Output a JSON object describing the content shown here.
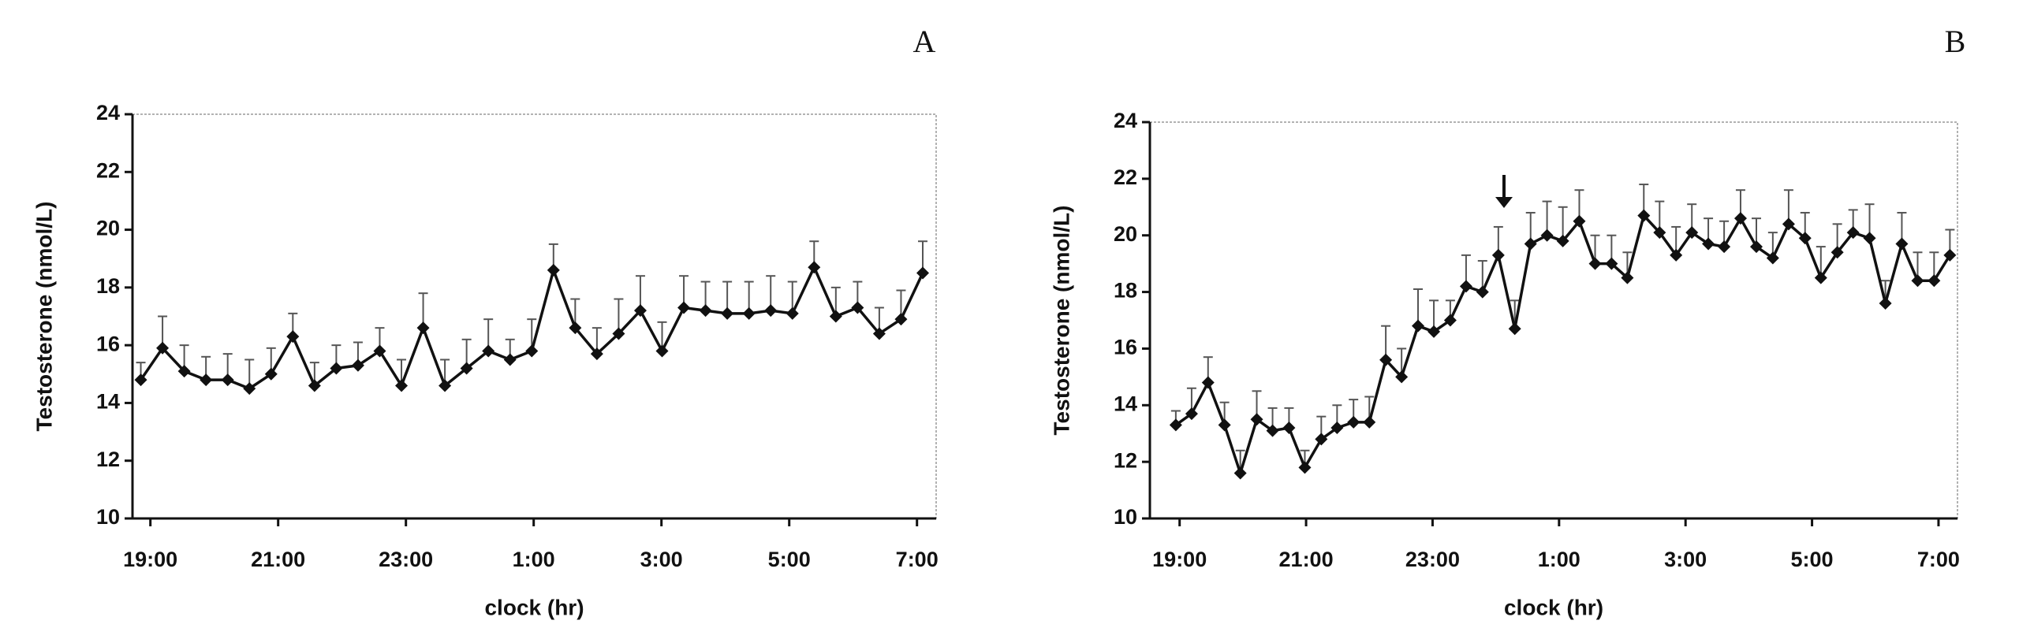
{
  "chart_data": [
    {
      "type": "line",
      "title": "A",
      "xlabel": "clock (hr)",
      "ylabel": "Testosterone (nmol/L)",
      "color": "#111111",
      "x": [
        -0.15,
        0.19,
        0.53,
        0.87,
        1.21,
        1.55,
        1.89,
        2.23,
        2.57,
        2.91,
        3.25,
        3.59,
        3.93,
        4.27,
        4.61,
        4.95,
        5.29,
        5.63,
        5.97,
        6.31,
        6.65,
        6.99,
        7.33,
        7.67,
        8.01,
        8.35,
        8.69,
        9.03,
        9.37,
        9.71,
        10.05,
        10.39,
        10.73,
        11.07,
        11.41,
        11.75,
        12.09
      ],
      "values": [
        14.8,
        15.9,
        15.1,
        14.8,
        14.8,
        14.5,
        15.0,
        16.3,
        14.6,
        15.2,
        15.3,
        15.8,
        14.6,
        16.6,
        14.6,
        15.2,
        15.8,
        15.5,
        15.8,
        18.6,
        16.6,
        15.7,
        16.4,
        17.2,
        15.8,
        17.3,
        17.2,
        17.1,
        17.1,
        17.2,
        17.1,
        18.7,
        17.0,
        17.3,
        16.4,
        16.9,
        18.5
      ],
      "errors": [
        0.6,
        1.1,
        0.9,
        0.8,
        0.9,
        1.0,
        0.9,
        0.8,
        0.8,
        0.8,
        0.8,
        0.8,
        0.9,
        1.2,
        0.9,
        1.0,
        1.1,
        0.7,
        1.1,
        0.9,
        1.0,
        0.9,
        1.2,
        1.2,
        1.0,
        1.1,
        1.0,
        1.1,
        1.1,
        1.2,
        1.1,
        0.9,
        1.0,
        0.9,
        0.9,
        1.0,
        1.1
      ],
      "xlim": [
        -0.28,
        12.3
      ],
      "ylim": [
        10,
        24
      ],
      "yticks": [
        10,
        12,
        14,
        16,
        18,
        20,
        22,
        24
      ],
      "xticks": [
        {
          "value": 0,
          "label": "19:00"
        },
        {
          "value": 2,
          "label": "21:00"
        },
        {
          "value": 4,
          "label": "23:00"
        },
        {
          "value": 6,
          "label": "1:00"
        },
        {
          "value": 8,
          "label": "3:00"
        },
        {
          "value": 10,
          "label": "5:00"
        },
        {
          "value": 12,
          "label": "7:00"
        }
      ]
    },
    {
      "type": "line",
      "title": "B",
      "xlabel": "clock (hr)",
      "ylabel": "Testosterone (nmol/L)",
      "color": "#111111",
      "x": [
        -0.06,
        0.19,
        0.45,
        0.71,
        0.96,
        1.22,
        1.47,
        1.73,
        1.98,
        2.24,
        2.49,
        2.75,
        3.0,
        3.26,
        3.51,
        3.77,
        4.02,
        4.28,
        4.53,
        4.79,
        5.04,
        5.3,
        5.55,
        5.81,
        6.06,
        6.32,
        6.57,
        6.83,
        7.08,
        7.34,
        7.59,
        7.85,
        8.1,
        8.36,
        8.61,
        8.87,
        9.12,
        9.38,
        9.63,
        9.89,
        10.14,
        10.4,
        10.65,
        10.91,
        11.16,
        11.42,
        11.67,
        11.93,
        12.18
      ],
      "values": [
        13.3,
        13.7,
        14.8,
        13.3,
        11.6,
        13.5,
        13.1,
        13.2,
        11.8,
        12.8,
        13.2,
        13.4,
        13.4,
        15.6,
        15.0,
        16.8,
        16.6,
        17.0,
        18.2,
        18.0,
        19.3,
        16.7,
        19.7,
        20.0,
        19.8,
        20.5,
        19.0,
        19.0,
        18.5,
        20.7,
        20.1,
        19.3,
        20.1,
        19.7,
        19.6,
        20.6,
        19.6,
        19.2,
        20.4,
        19.9,
        18.5,
        19.4,
        20.1,
        19.9,
        17.6,
        19.7,
        18.4,
        18.4,
        19.3
      ],
      "errors": [
        0.5,
        0.9,
        0.9,
        0.8,
        0.8,
        1.0,
        0.8,
        0.7,
        0.6,
        0.8,
        0.8,
        0.8,
        0.9,
        1.2,
        1.0,
        1.3,
        1.1,
        0.7,
        1.1,
        1.1,
        1.0,
        1.0,
        1.1,
        1.2,
        1.2,
        1.1,
        1.0,
        1.0,
        0.9,
        1.1,
        1.1,
        1.0,
        1.0,
        0.9,
        0.9,
        1.0,
        1.0,
        0.9,
        1.2,
        0.9,
        1.1,
        1.0,
        0.8,
        1.2,
        0.8,
        1.1,
        1.0,
        1.0,
        0.9
      ],
      "xlim": [
        -0.47,
        12.3
      ],
      "ylim": [
        10,
        24
      ],
      "yticks": [
        10,
        12,
        14,
        16,
        18,
        20,
        22,
        24
      ],
      "xticks": [
        {
          "value": 0,
          "label": "19:00"
        },
        {
          "value": 2,
          "label": "21:00"
        },
        {
          "value": 4,
          "label": "23:00"
        },
        {
          "value": 6,
          "label": "1:00"
        },
        {
          "value": 8,
          "label": "3:00"
        },
        {
          "value": 10,
          "label": "5:00"
        },
        {
          "value": 12,
          "label": "7:00"
        }
      ]
    }
  ]
}
